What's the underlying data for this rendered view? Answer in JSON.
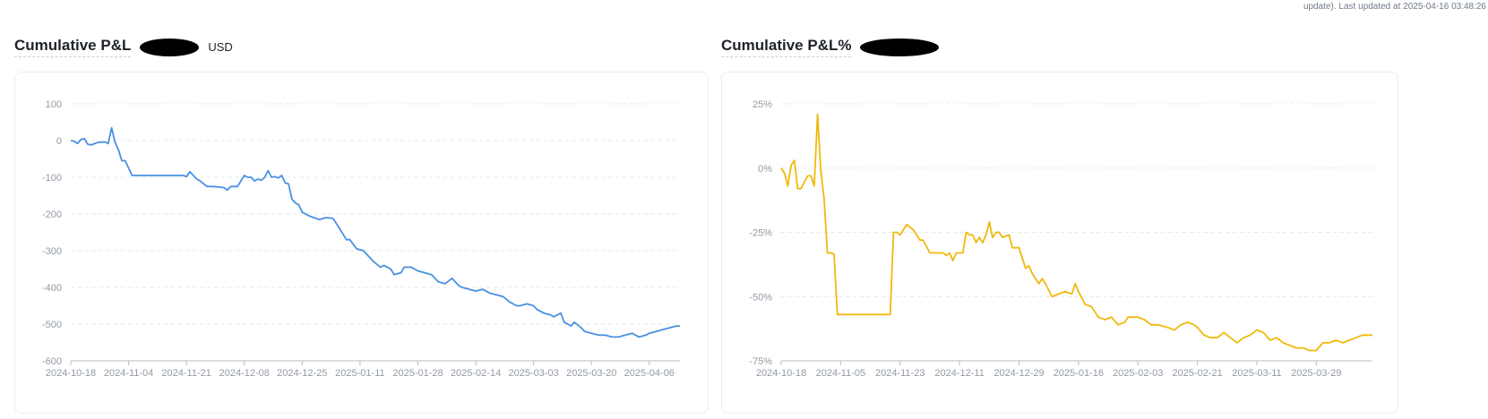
{
  "header": {
    "update_note": "update). Last updated at 2025-04-16 03:48:26"
  },
  "chart_data": [
    {
      "type": "line",
      "title": "Cumulative P&L",
      "unit": "USD",
      "color": "#4a90e2",
      "xlabel": "",
      "ylabel": "",
      "grid": true,
      "ylim": [
        -600,
        100
      ],
      "yticks": [
        100,
        0,
        -100,
        -200,
        -300,
        -400,
        -500,
        -600
      ],
      "xlim": [
        "2024-10-18",
        "2025-04-15"
      ],
      "xtick_labels": [
        "2024-10-18",
        "2024-11-04",
        "2024-11-21",
        "2024-12-08",
        "2024-12-25",
        "2025-01-11",
        "2025-01-28",
        "2025-02-14",
        "2025-03-03",
        "2025-03-20",
        "2025-04-06"
      ],
      "series": [
        {
          "x": [
            "2024-10-18",
            "2024-10-19",
            "2024-10-20",
            "2024-10-21",
            "2024-10-22",
            "2024-10-23",
            "2024-10-24",
            "2024-10-26",
            "2024-10-28",
            "2024-10-29",
            "2024-10-30",
            "2024-10-31",
            "2024-11-01",
            "2024-11-02",
            "2024-11-03",
            "2024-11-05",
            "2024-11-10",
            "2024-11-15",
            "2024-11-20",
            "2024-11-21",
            "2024-11-22",
            "2024-11-24",
            "2024-11-25",
            "2024-11-27",
            "2024-11-29",
            "2024-12-02",
            "2024-12-03",
            "2024-12-04",
            "2024-12-06",
            "2024-12-08",
            "2024-12-09",
            "2024-12-10",
            "2024-12-11",
            "2024-12-12",
            "2024-12-13",
            "2024-12-14",
            "2024-12-15",
            "2024-12-16",
            "2024-12-17",
            "2024-12-18",
            "2024-12-19",
            "2024-12-20",
            "2024-12-21",
            "2024-12-22",
            "2024-12-23",
            "2024-12-24",
            "2024-12-25",
            "2024-12-27",
            "2024-12-29",
            "2024-12-30",
            "2025-01-01",
            "2025-01-03",
            "2025-01-04",
            "2025-01-05",
            "2025-01-07",
            "2025-01-08",
            "2025-01-10",
            "2025-01-12",
            "2025-01-13",
            "2025-01-15",
            "2025-01-17",
            "2025-01-18",
            "2025-01-20",
            "2025-01-21",
            "2025-01-23",
            "2025-01-24",
            "2025-01-26",
            "2025-01-28",
            "2025-01-30",
            "2025-02-01",
            "2025-02-03",
            "2025-02-05",
            "2025-02-07",
            "2025-02-09",
            "2025-02-10",
            "2025-02-14",
            "2025-02-16",
            "2025-02-18",
            "2025-02-20",
            "2025-02-22",
            "2025-02-24",
            "2025-02-26",
            "2025-02-27",
            "2025-03-01",
            "2025-03-03",
            "2025-03-04",
            "2025-03-06",
            "2025-03-08",
            "2025-03-09",
            "2025-03-11",
            "2025-03-12",
            "2025-03-14",
            "2025-03-15",
            "2025-03-17",
            "2025-03-18",
            "2025-03-20",
            "2025-03-22",
            "2025-03-24",
            "2025-03-26",
            "2025-03-28",
            "2025-03-30",
            "2025-04-01",
            "2025-04-03",
            "2025-04-05",
            "2025-04-06",
            "2025-04-08",
            "2025-04-10",
            "2025-04-12",
            "2025-04-14",
            "2025-04-15"
          ],
          "y": [
            0,
            -2,
            -8,
            3,
            5,
            -10,
            -12,
            -5,
            -4,
            -8,
            35,
            -5,
            -25,
            -55,
            -55,
            -95,
            -95,
            -95,
            -95,
            -98,
            -85,
            -105,
            -110,
            -125,
            -125,
            -128,
            -135,
            -125,
            -125,
            -95,
            -100,
            -100,
            -110,
            -105,
            -108,
            -100,
            -82,
            -100,
            -98,
            -102,
            -95,
            -115,
            -118,
            -160,
            -170,
            -175,
            -195,
            -205,
            -212,
            -215,
            -210,
            -212,
            -225,
            -240,
            -270,
            -270,
            -295,
            -300,
            -310,
            -330,
            -345,
            -340,
            -350,
            -365,
            -360,
            -345,
            -345,
            -355,
            -360,
            -365,
            -385,
            -390,
            -375,
            -395,
            -400,
            -410,
            -405,
            -415,
            -420,
            -425,
            -440,
            -450,
            -450,
            -445,
            -450,
            -460,
            -470,
            -475,
            -480,
            -470,
            -495,
            -505,
            -495,
            -510,
            -520,
            -525,
            -530,
            -530,
            -535,
            -535,
            -530,
            -525,
            -535,
            -530,
            -525,
            -520,
            -515,
            -510,
            -505,
            -505
          ]
        }
      ]
    },
    {
      "type": "line",
      "title": "Cumulative P&L%",
      "color": "#f0b90b",
      "xlabel": "",
      "ylabel": "",
      "grid": true,
      "ylim": [
        -75,
        25
      ],
      "yticks": [
        "25%",
        "0%",
        "-25%",
        "-50%",
        "-75%"
      ],
      "xlim": [
        "2024-10-18",
        "2025-04-15"
      ],
      "xtick_labels": [
        "2024-10-18",
        "2024-11-05",
        "2024-11-23",
        "2024-12-11",
        "2024-12-29",
        "2025-01-16",
        "2025-02-03",
        "2025-02-21",
        "2025-03-11",
        "2025-03-29"
      ],
      "series": [
        {
          "x": [
            "2024-10-18",
            "2024-10-19",
            "2024-10-20",
            "2024-10-21",
            "2024-10-22",
            "2024-10-23",
            "2024-10-24",
            "2024-10-26",
            "2024-10-27",
            "2024-10-28",
            "2024-10-29",
            "2024-10-30",
            "2024-10-31",
            "2024-11-01",
            "2024-11-02",
            "2024-11-03",
            "2024-11-04",
            "2024-11-05",
            "2024-11-10",
            "2024-11-15",
            "2024-11-19",
            "2024-11-20",
            "2024-11-21",
            "2024-11-22",
            "2024-11-23",
            "2024-11-25",
            "2024-11-27",
            "2024-11-29",
            "2024-11-30",
            "2024-12-02",
            "2024-12-04",
            "2024-12-05",
            "2024-12-06",
            "2024-12-07",
            "2024-12-08",
            "2024-12-09",
            "2024-12-10",
            "2024-12-11",
            "2024-12-12",
            "2024-12-13",
            "2024-12-14",
            "2024-12-15",
            "2024-12-16",
            "2024-12-17",
            "2024-12-18",
            "2024-12-19",
            "2024-12-20",
            "2024-12-21",
            "2024-12-22",
            "2024-12-23",
            "2024-12-24",
            "2024-12-26",
            "2024-12-27",
            "2024-12-29",
            "2024-12-31",
            "2025-01-01",
            "2025-01-02",
            "2025-01-04",
            "2025-01-05",
            "2025-01-06",
            "2025-01-08",
            "2025-01-10",
            "2025-01-12",
            "2025-01-14",
            "2025-01-15",
            "2025-01-16",
            "2025-01-18",
            "2025-01-20",
            "2025-01-22",
            "2025-01-24",
            "2025-01-26",
            "2025-01-28",
            "2025-01-30",
            "2025-01-31",
            "2025-02-01",
            "2025-02-03",
            "2025-02-05",
            "2025-02-07",
            "2025-02-09",
            "2025-02-12",
            "2025-02-14",
            "2025-02-16",
            "2025-02-18",
            "2025-02-20",
            "2025-02-21",
            "2025-02-23",
            "2025-02-25",
            "2025-02-27",
            "2025-03-01",
            "2025-03-03",
            "2025-03-05",
            "2025-03-07",
            "2025-03-09",
            "2025-03-11",
            "2025-03-13",
            "2025-03-15",
            "2025-03-17",
            "2025-03-19",
            "2025-03-21",
            "2025-03-23",
            "2025-03-25",
            "2025-03-27",
            "2025-03-29",
            "2025-03-31",
            "2025-04-02",
            "2025-04-04",
            "2025-04-06",
            "2025-04-08",
            "2025-04-10",
            "2025-04-12",
            "2025-04-14",
            "2025-04-15"
          ],
          "y": [
            0,
            -2,
            -7,
            1,
            3,
            -8,
            -8,
            -3,
            -3,
            -7,
            21,
            -1,
            -12,
            -33,
            -33,
            -33.5,
            -57,
            -57,
            -57,
            -57,
            -57,
            -57,
            -25,
            -25,
            -26,
            -22,
            -24,
            -28,
            -28,
            -33,
            -33,
            -33,
            -33,
            -34,
            -33,
            -36,
            -33,
            -33,
            -33,
            -25,
            -26,
            -26,
            -29,
            -27,
            -29,
            -26,
            -21,
            -27,
            -25,
            -25,
            -27,
            -26,
            -31,
            -31,
            -39,
            -38,
            -41,
            -45,
            -43,
            -45,
            -50,
            -49,
            -48,
            -49,
            -45,
            -48,
            -53,
            -54,
            -58,
            -59,
            -58,
            -61,
            -60,
            -58,
            -58,
            -58,
            -59,
            -61,
            -61,
            -62,
            -63,
            -61,
            -60,
            -61,
            -62,
            -65,
            -66,
            -66,
            -64,
            -66,
            -68,
            -66,
            -65,
            -63,
            -64,
            -67,
            -66,
            -68,
            -69,
            -70,
            -70,
            -71,
            -71,
            -68,
            -68,
            -67,
            -68,
            -67,
            -66,
            -65,
            -65,
            -65
          ]
        }
      ]
    }
  ]
}
